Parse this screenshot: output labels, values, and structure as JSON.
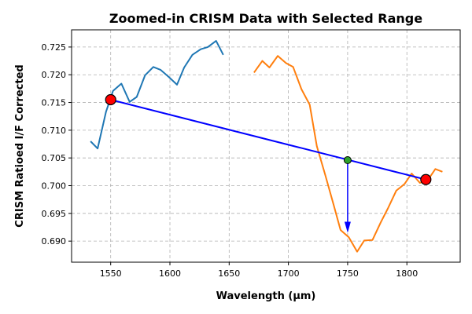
{
  "chart_data": {
    "type": "line",
    "title": "Zoomed-in CRISM Data with Selected Range",
    "xlabel": "Wavelength (μm)",
    "ylabel": "CRISM Ratioed I/F Corrected",
    "xlim": [
      1517,
      1845
    ],
    "ylim": [
      0.6862,
      0.7281
    ],
    "xticks": [
      1550,
      1600,
      1650,
      1700,
      1750,
      1800
    ],
    "yticks": [
      0.69,
      0.695,
      0.7,
      0.705,
      0.71,
      0.715,
      0.72,
      0.725
    ],
    "xtick_labels": [
      "1550",
      "1600",
      "1650",
      "1700",
      "1750",
      "1800"
    ],
    "ytick_labels": [
      "0.690",
      "0.695",
      "0.700",
      "0.705",
      "0.710",
      "0.715",
      "0.720",
      "0.725"
    ],
    "grid": true,
    "series": [
      {
        "color": "#1f77b4",
        "x": [
          1533,
          1539,
          1546,
          1552,
          1559,
          1566,
          1572,
          1579,
          1586,
          1592,
          1599,
          1606,
          1612,
          1619,
          1626,
          1632,
          1639,
          1645
        ],
        "y": [
          0.708,
          0.7067,
          0.7133,
          0.7171,
          0.7184,
          0.7151,
          0.716,
          0.7199,
          0.7214,
          0.7209,
          0.7196,
          0.7182,
          0.7213,
          0.7236,
          0.7246,
          0.725,
          0.7261,
          0.7236
        ]
      },
      {
        "color": "#ff7f0e",
        "x": [
          1671,
          1678,
          1684,
          1691,
          1698,
          1704,
          1711,
          1718,
          1724,
          1731,
          1738,
          1744,
          1751,
          1758,
          1764,
          1771,
          1778,
          1784,
          1791,
          1798,
          1804,
          1811,
          1818,
          1824,
          1830
        ],
        "y": [
          0.7204,
          0.7225,
          0.7213,
          0.7234,
          0.7221,
          0.7214,
          0.7174,
          0.7146,
          0.7071,
          0.702,
          0.6967,
          0.692,
          0.6907,
          0.6881,
          0.6901,
          0.6902,
          0.6934,
          0.6959,
          0.6991,
          0.7003,
          0.7022,
          0.7005,
          0.7011,
          0.703,
          0.7025
        ]
      }
    ],
    "selection_line": {
      "color": "#0000ff",
      "start": [
        1550,
        0.7155
      ],
      "end": [
        1816,
        0.7011
      ]
    },
    "selected_points": [
      {
        "x": 1550,
        "y": 0.7155,
        "color": "#ff0000"
      },
      {
        "x": 1816,
        "y": 0.7011,
        "color": "#ff0000"
      }
    ],
    "midpoint_marker": {
      "x": 1750,
      "y": 0.7046,
      "color": "#2ca02c"
    },
    "arrow": {
      "color": "#0000ff",
      "from": [
        1750,
        0.7046
      ],
      "to": [
        1750,
        0.6915
      ]
    }
  }
}
